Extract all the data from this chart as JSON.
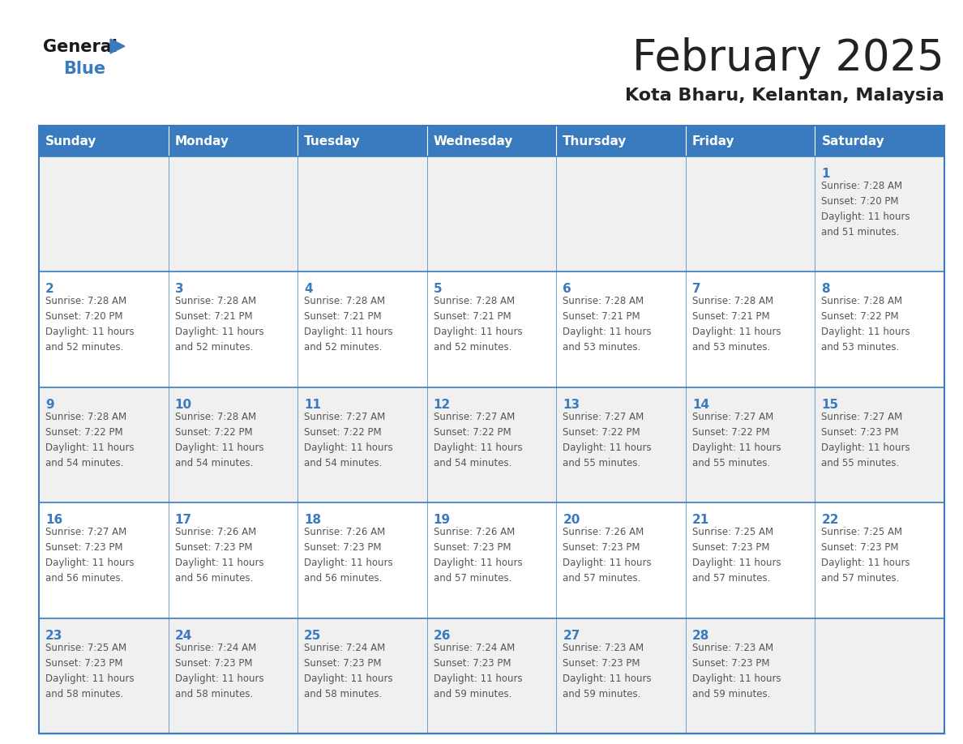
{
  "title": "February 2025",
  "subtitle": "Kota Bharu, Kelantan, Malaysia",
  "days_of_week": [
    "Sunday",
    "Monday",
    "Tuesday",
    "Wednesday",
    "Thursday",
    "Friday",
    "Saturday"
  ],
  "header_bg": "#3a7bbf",
  "header_text": "#ffffff",
  "cell_bg_odd": "#f0f0f0",
  "cell_bg_even": "#ffffff",
  "border_color": "#3a7bbf",
  "day_number_color": "#3a7bbf",
  "text_color": "#555555",
  "title_color": "#222222",
  "subtitle_color": "#222222",
  "logo_text_color": "#1a1a1a",
  "logo_blue_color": "#3a7bbf",
  "calendar_data": [
    [
      null,
      null,
      null,
      null,
      null,
      null,
      {
        "day": 1,
        "sunrise": "7:28 AM",
        "sunset": "7:20 PM",
        "daylight": "11 hours",
        "daylight2": "and 51 minutes."
      }
    ],
    [
      {
        "day": 2,
        "sunrise": "7:28 AM",
        "sunset": "7:20 PM",
        "daylight": "11 hours",
        "daylight2": "and 52 minutes."
      },
      {
        "day": 3,
        "sunrise": "7:28 AM",
        "sunset": "7:21 PM",
        "daylight": "11 hours",
        "daylight2": "and 52 minutes."
      },
      {
        "day": 4,
        "sunrise": "7:28 AM",
        "sunset": "7:21 PM",
        "daylight": "11 hours",
        "daylight2": "and 52 minutes."
      },
      {
        "day": 5,
        "sunrise": "7:28 AM",
        "sunset": "7:21 PM",
        "daylight": "11 hours",
        "daylight2": "and 52 minutes."
      },
      {
        "day": 6,
        "sunrise": "7:28 AM",
        "sunset": "7:21 PM",
        "daylight": "11 hours",
        "daylight2": "and 53 minutes."
      },
      {
        "day": 7,
        "sunrise": "7:28 AM",
        "sunset": "7:21 PM",
        "daylight": "11 hours",
        "daylight2": "and 53 minutes."
      },
      {
        "day": 8,
        "sunrise": "7:28 AM",
        "sunset": "7:22 PM",
        "daylight": "11 hours",
        "daylight2": "and 53 minutes."
      }
    ],
    [
      {
        "day": 9,
        "sunrise": "7:28 AM",
        "sunset": "7:22 PM",
        "daylight": "11 hours",
        "daylight2": "and 54 minutes."
      },
      {
        "day": 10,
        "sunrise": "7:28 AM",
        "sunset": "7:22 PM",
        "daylight": "11 hours",
        "daylight2": "and 54 minutes."
      },
      {
        "day": 11,
        "sunrise": "7:27 AM",
        "sunset": "7:22 PM",
        "daylight": "11 hours",
        "daylight2": "and 54 minutes."
      },
      {
        "day": 12,
        "sunrise": "7:27 AM",
        "sunset": "7:22 PM",
        "daylight": "11 hours",
        "daylight2": "and 54 minutes."
      },
      {
        "day": 13,
        "sunrise": "7:27 AM",
        "sunset": "7:22 PM",
        "daylight": "11 hours",
        "daylight2": "and 55 minutes."
      },
      {
        "day": 14,
        "sunrise": "7:27 AM",
        "sunset": "7:22 PM",
        "daylight": "11 hours",
        "daylight2": "and 55 minutes."
      },
      {
        "day": 15,
        "sunrise": "7:27 AM",
        "sunset": "7:23 PM",
        "daylight": "11 hours",
        "daylight2": "and 55 minutes."
      }
    ],
    [
      {
        "day": 16,
        "sunrise": "7:27 AM",
        "sunset": "7:23 PM",
        "daylight": "11 hours",
        "daylight2": "and 56 minutes."
      },
      {
        "day": 17,
        "sunrise": "7:26 AM",
        "sunset": "7:23 PM",
        "daylight": "11 hours",
        "daylight2": "and 56 minutes."
      },
      {
        "day": 18,
        "sunrise": "7:26 AM",
        "sunset": "7:23 PM",
        "daylight": "11 hours",
        "daylight2": "and 56 minutes."
      },
      {
        "day": 19,
        "sunrise": "7:26 AM",
        "sunset": "7:23 PM",
        "daylight": "11 hours",
        "daylight2": "and 57 minutes."
      },
      {
        "day": 20,
        "sunrise": "7:26 AM",
        "sunset": "7:23 PM",
        "daylight": "11 hours",
        "daylight2": "and 57 minutes."
      },
      {
        "day": 21,
        "sunrise": "7:25 AM",
        "sunset": "7:23 PM",
        "daylight": "11 hours",
        "daylight2": "and 57 minutes."
      },
      {
        "day": 22,
        "sunrise": "7:25 AM",
        "sunset": "7:23 PM",
        "daylight": "11 hours",
        "daylight2": "and 57 minutes."
      }
    ],
    [
      {
        "day": 23,
        "sunrise": "7:25 AM",
        "sunset": "7:23 PM",
        "daylight": "11 hours",
        "daylight2": "and 58 minutes."
      },
      {
        "day": 24,
        "sunrise": "7:24 AM",
        "sunset": "7:23 PM",
        "daylight": "11 hours",
        "daylight2": "and 58 minutes."
      },
      {
        "day": 25,
        "sunrise": "7:24 AM",
        "sunset": "7:23 PM",
        "daylight": "11 hours",
        "daylight2": "and 58 minutes."
      },
      {
        "day": 26,
        "sunrise": "7:24 AM",
        "sunset": "7:23 PM",
        "daylight": "11 hours",
        "daylight2": "and 59 minutes."
      },
      {
        "day": 27,
        "sunrise": "7:23 AM",
        "sunset": "7:23 PM",
        "daylight": "11 hours",
        "daylight2": "and 59 minutes."
      },
      {
        "day": 28,
        "sunrise": "7:23 AM",
        "sunset": "7:23 PM",
        "daylight": "11 hours",
        "daylight2": "and 59 minutes."
      },
      null
    ]
  ]
}
